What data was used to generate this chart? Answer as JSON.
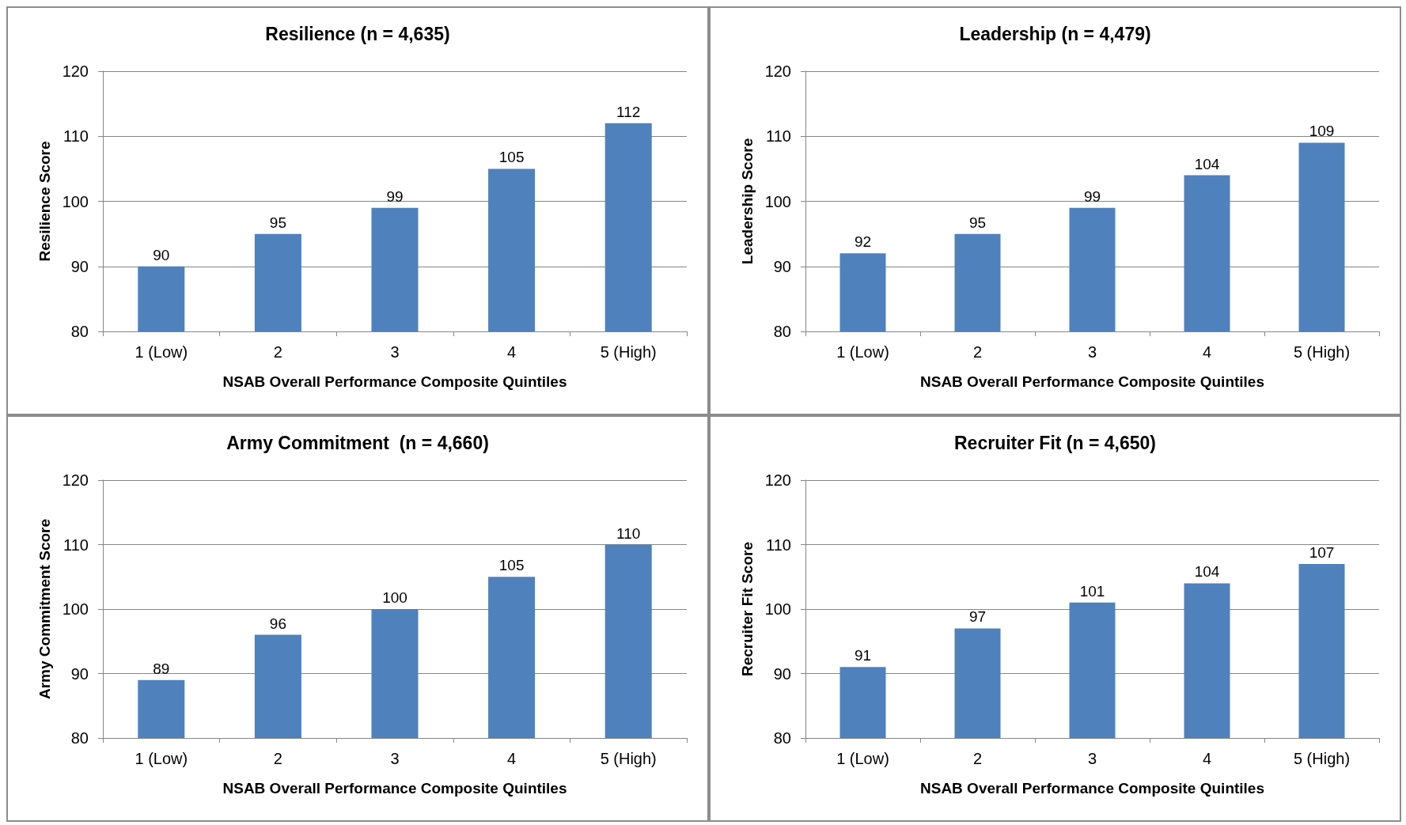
{
  "chart_data": [
    {
      "type": "bar",
      "title": "Resilience (n = 4,635)",
      "xlabel": "NSAB Overall Performance Composite Quintiles",
      "ylabel": "Resilience Score",
      "categories": [
        "1 (Low)",
        "2",
        "3",
        "4",
        "5 (High)"
      ],
      "values": [
        90,
        95,
        99,
        105,
        112
      ],
      "color": "#4f81bd",
      "ylim": [
        80,
        120
      ],
      "yticks": [
        80,
        90,
        100,
        110,
        120
      ],
      "grid": "y",
      "data_labels": true
    },
    {
      "type": "bar",
      "title": "Leadership (n = 4,479)",
      "xlabel": "NSAB Overall Performance Composite Quintiles",
      "ylabel": "Leadership Score",
      "categories": [
        "1 (Low)",
        "2",
        "3",
        "4",
        "5 (High)"
      ],
      "values": [
        92,
        95,
        99,
        104,
        109
      ],
      "color": "#4f81bd",
      "ylim": [
        80,
        120
      ],
      "yticks": [
        80,
        90,
        100,
        110,
        120
      ],
      "grid": "y",
      "data_labels": true
    },
    {
      "type": "bar",
      "title": "Army Commitment  (n = 4,660)",
      "xlabel": "NSAB Overall Performance Composite Quintiles",
      "ylabel": "Army Commitment Score",
      "categories": [
        "1 (Low)",
        "2",
        "3",
        "4",
        "5 (High)"
      ],
      "values": [
        89,
        96,
        100,
        105,
        110
      ],
      "color": "#4f81bd",
      "ylim": [
        80,
        120
      ],
      "yticks": [
        80,
        90,
        100,
        110,
        120
      ],
      "grid": "y",
      "data_labels": true
    },
    {
      "type": "bar",
      "title": "Recruiter Fit (n = 4,650)",
      "xlabel": "NSAB Overall Performance Composite Quintiles",
      "ylabel": "Recruiter Fit Score",
      "categories": [
        "1 (Low)",
        "2",
        "3",
        "4",
        "5 (High)"
      ],
      "values": [
        91,
        97,
        101,
        104,
        107
      ],
      "color": "#4f81bd",
      "ylim": [
        80,
        120
      ],
      "yticks": [
        80,
        90,
        100,
        110,
        120
      ],
      "grid": "y",
      "data_labels": true
    }
  ]
}
